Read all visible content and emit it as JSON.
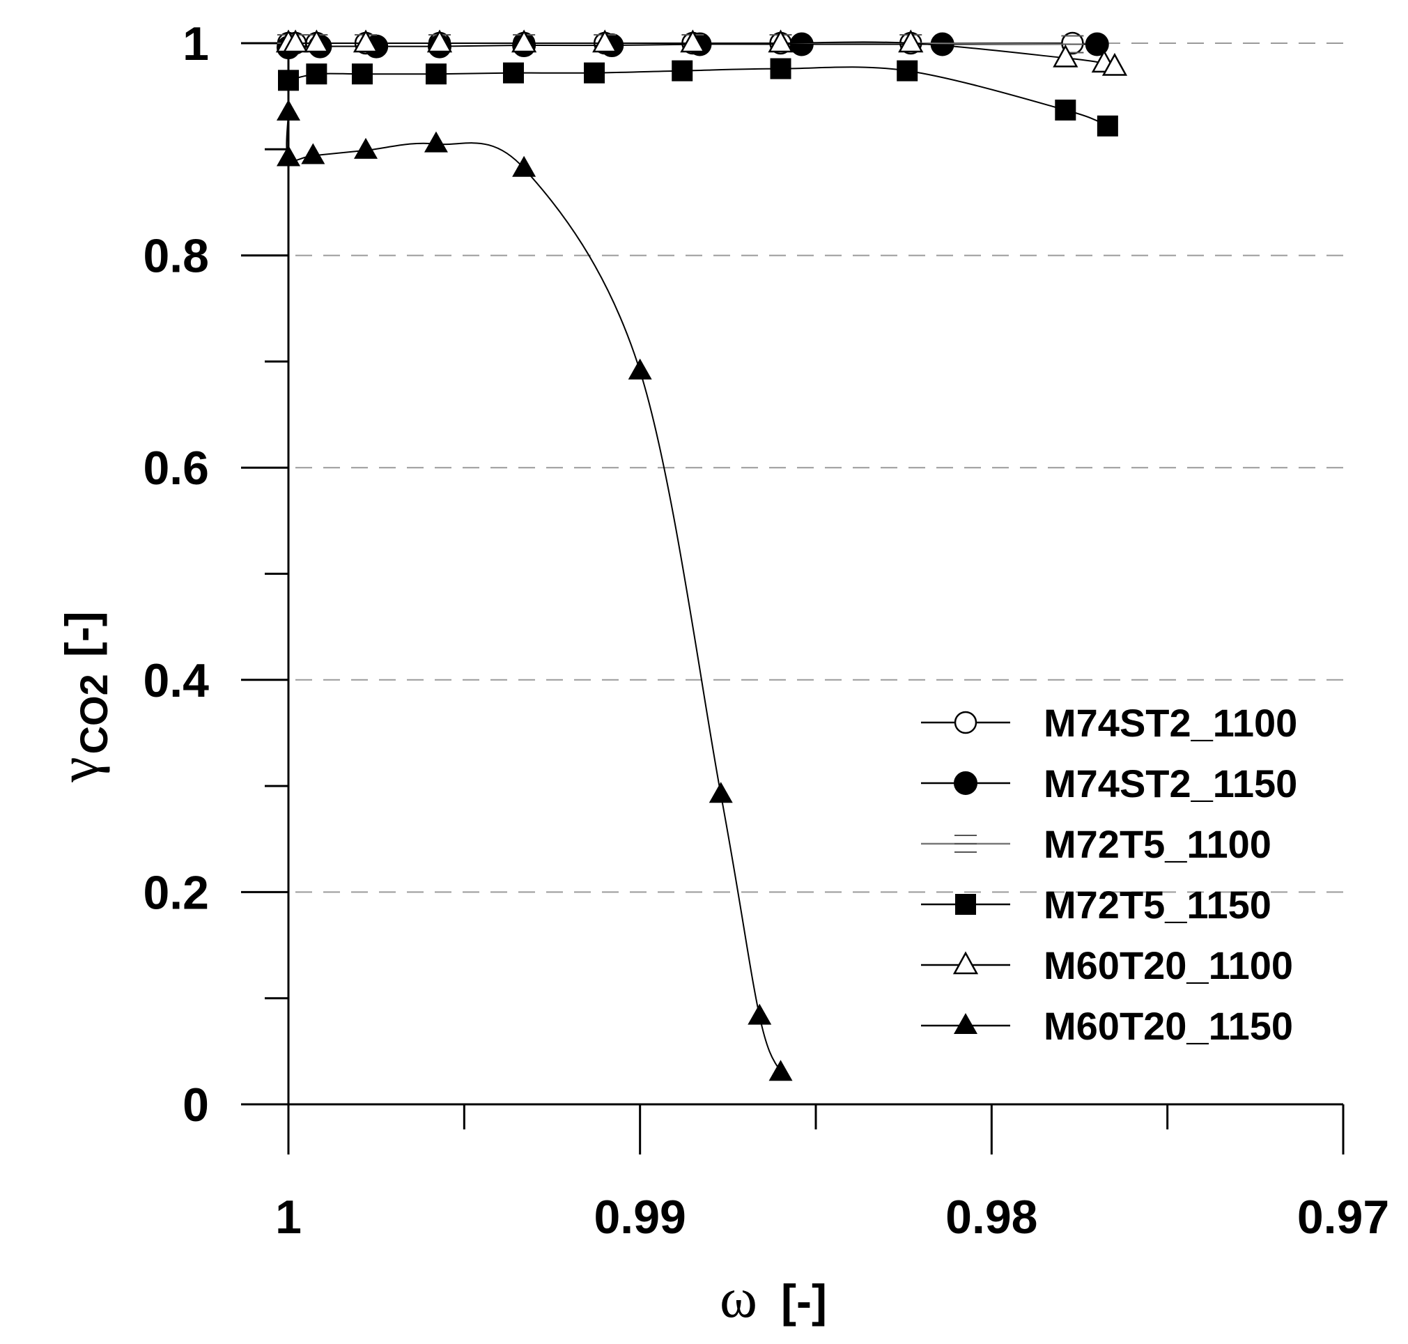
{
  "chart_data": {
    "type": "line",
    "title": "",
    "xlabel": {
      "symbol": "ω",
      "unit": "[-]"
    },
    "ylabel": {
      "symbol": "γ",
      "subscript": "CO2",
      "unit": "[-]"
    },
    "xlim": [
      1.0,
      0.97
    ],
    "ylim": [
      0,
      1
    ],
    "x_ticks": [
      1.0,
      0.99,
      0.98,
      0.97
    ],
    "x_tick_labels": [
      "1",
      "0.99",
      "0.98",
      "0.97"
    ],
    "y_ticks": [
      0,
      0.2,
      0.4,
      0.6,
      0.8,
      1.0
    ],
    "y_tick_labels": [
      "0",
      "0.2",
      "0.4",
      "0.6",
      "0.8",
      "1"
    ],
    "grid": "dashed horizontal at labeled y ticks",
    "legend_position": "bottom-right",
    "series": [
      {
        "name": "M74ST2_1100",
        "marker": "circle-open",
        "x": [
          1.0,
          0.9998,
          0.9992,
          0.9978,
          0.9957,
          0.9933,
          0.991,
          0.9885,
          0.986,
          0.9823,
          0.9777
        ],
        "y": [
          1.0,
          1.0,
          1.0,
          1.0,
          1.0,
          1.0,
          1.0,
          1.0,
          1.0,
          1.0,
          1.0
        ]
      },
      {
        "name": "M74ST2_1150",
        "marker": "circle-filled",
        "x": [
          1.0,
          0.9991,
          0.9975,
          0.9957,
          0.9933,
          0.9908,
          0.9883,
          0.9854,
          0.9814,
          0.977
        ],
        "y": [
          0.996,
          0.997,
          0.997,
          0.997,
          0.998,
          0.998,
          0.999,
          0.999,
          0.999,
          0.999
        ]
      },
      {
        "name": "M72T5_1100",
        "marker": "dash",
        "x": [
          1.0,
          0.9998,
          0.9992,
          0.9978,
          0.9957,
          0.9933,
          0.991,
          0.9885,
          0.986,
          0.9823,
          0.9777
        ],
        "y": [
          1.0,
          1.0,
          1.0,
          1.0,
          1.0,
          1.0,
          1.0,
          1.0,
          1.0,
          1.0,
          0.999
        ]
      },
      {
        "name": "M72T5_1150",
        "marker": "square-filled",
        "x": [
          1.0,
          0.9992,
          0.9979,
          0.9958,
          0.9936,
          0.9913,
          0.9888,
          0.986,
          0.9824,
          0.9779,
          0.9767
        ],
        "y": [
          0.965,
          0.971,
          0.971,
          0.971,
          0.972,
          0.972,
          0.974,
          0.976,
          0.974,
          0.937,
          0.922
        ]
      },
      {
        "name": "M60T20_1100",
        "marker": "triangle-open",
        "x": [
          1.0,
          0.9998,
          0.9992,
          0.9978,
          0.9957,
          0.9933,
          0.991,
          0.9885,
          0.986,
          0.9823,
          0.9779,
          0.9768,
          0.9765
        ],
        "y": [
          1.0,
          1.0,
          1.0,
          1.0,
          1.0,
          1.0,
          1.0,
          1.0,
          1.0,
          1.0,
          0.986,
          0.981,
          0.978
        ]
      },
      {
        "name": "M60T20_1150",
        "marker": "triangle-filled",
        "x": [
          1.0,
          1.0,
          0.9993,
          0.9978,
          0.9958,
          0.9933,
          0.99,
          0.9877,
          0.9866,
          0.986
        ],
        "y": [
          0.935,
          0.892,
          0.894,
          0.899,
          0.905,
          0.882,
          0.691,
          0.292,
          0.083,
          0.03
        ]
      }
    ]
  }
}
